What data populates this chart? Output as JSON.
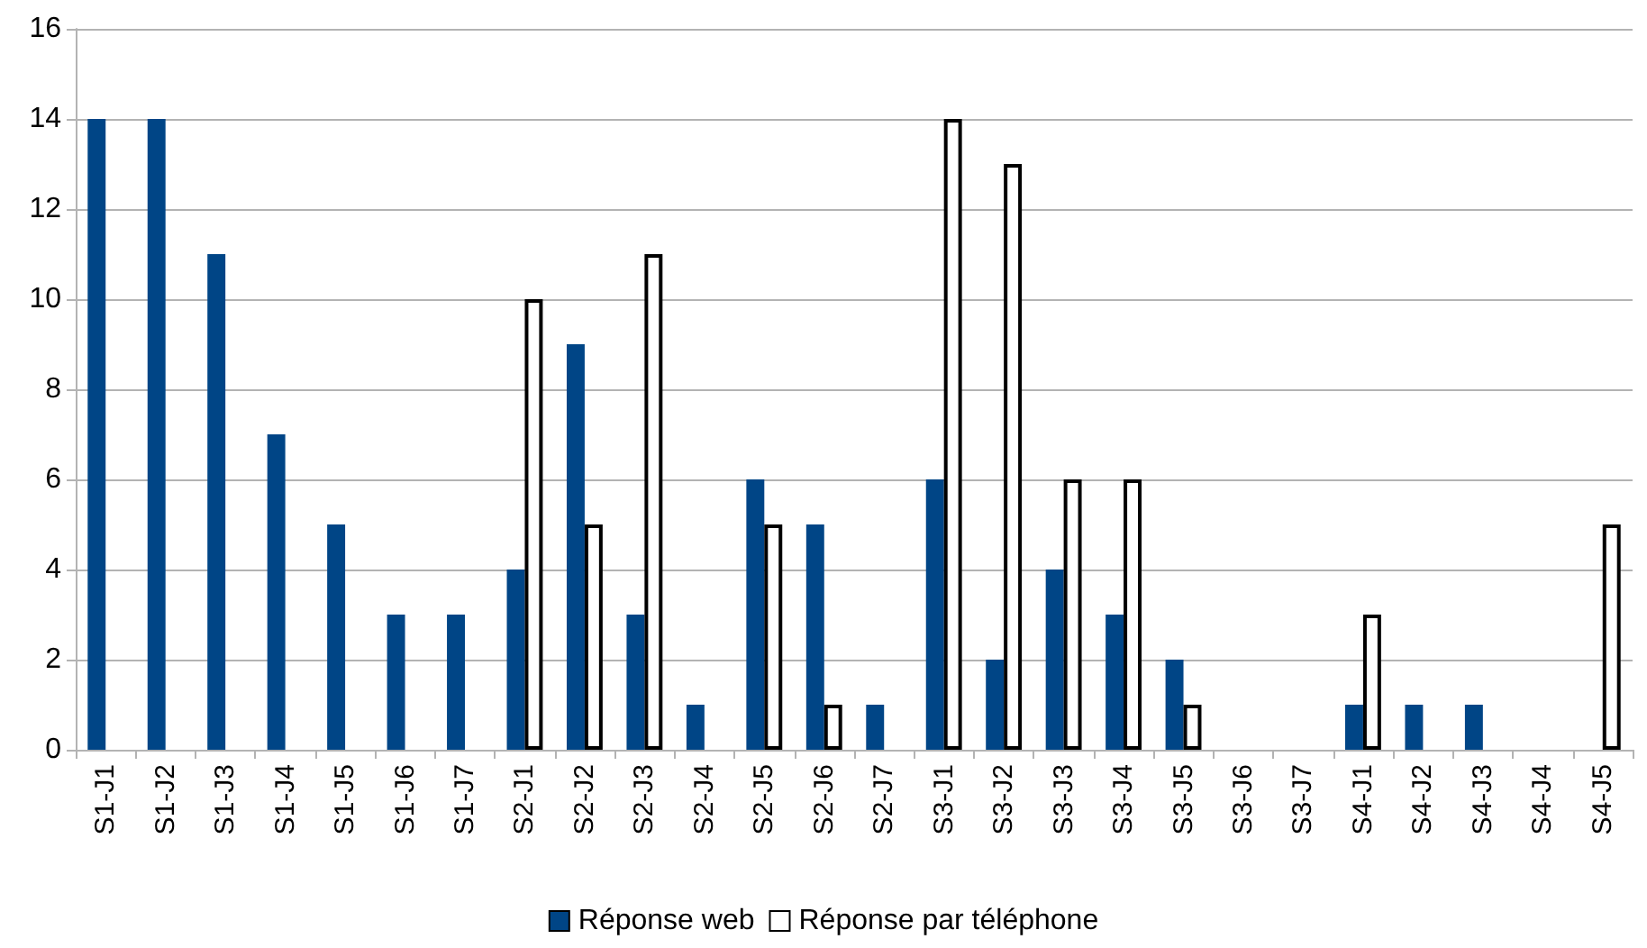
{
  "chart_data": {
    "type": "bar",
    "categories": [
      "S1-J1",
      "S1-J2",
      "S1-J3",
      "S1-J4",
      "S1-J5",
      "S1-J6",
      "S1-J7",
      "S2-J1",
      "S2-J2",
      "S2-J3",
      "S2-J4",
      "S2-J5",
      "S2-J6",
      "S2-J7",
      "S3-J1",
      "S3-J2",
      "S3-J3",
      "S3-J4",
      "S3-J5",
      "S3-J6",
      "S3-J7",
      "S4-J1",
      "S4-J2",
      "S4-J3",
      "S4-J4",
      "S4-J5"
    ],
    "series": [
      {
        "name": "Réponse web",
        "color": "#004586",
        "values": [
          14,
          14,
          11,
          7,
          5,
          3,
          3,
          4,
          9,
          3,
          1,
          6,
          5,
          1,
          6,
          2,
          4,
          3,
          2,
          0,
          0,
          1,
          1,
          1,
          0,
          0
        ]
      },
      {
        "name": "Réponse par téléphone",
        "color": "#ffffff",
        "values": [
          null,
          null,
          null,
          null,
          null,
          null,
          null,
          10,
          5,
          11,
          null,
          5,
          1,
          null,
          14,
          13,
          6,
          6,
          1,
          null,
          null,
          3,
          null,
          null,
          null,
          5
        ]
      }
    ],
    "ylim": [
      0,
      16
    ],
    "yticks": [
      0,
      2,
      4,
      6,
      8,
      10,
      12,
      14,
      16
    ],
    "grid": "y",
    "legend": "bottom"
  }
}
